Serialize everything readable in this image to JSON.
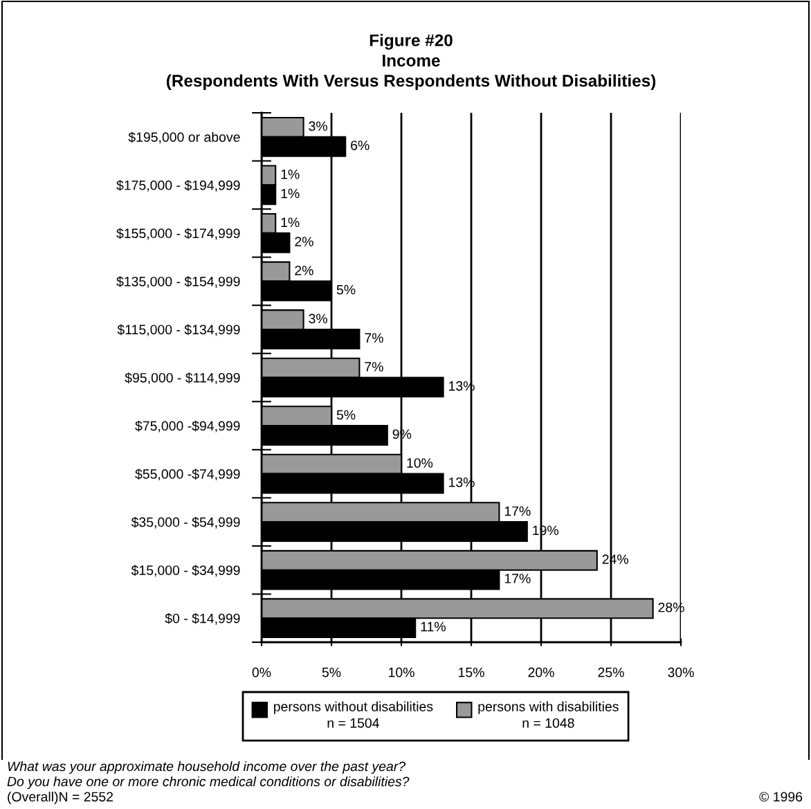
{
  "chart_data": {
    "type": "bar",
    "orientation": "horizontal",
    "title": "Figure #20\nIncome\n(Respondents With Versus Respondents Without Disabilities)",
    "categories": [
      "$195,000 or above",
      "$175,000 - $194,999",
      "$155,000 - $174,999",
      "$135,000 - $154,999",
      "$115,000 - $134,999",
      "$95,000 - $114,999",
      "$75,000 -$94,999",
      "$55,000 -$74,999",
      "$35,000 - $54,999",
      "$15,000 - $34,999",
      "$0 - $14,999"
    ],
    "series": [
      {
        "name": "persons with disabilities\nn = 1048",
        "color": "#999999",
        "values": [
          3,
          1,
          1,
          2,
          3,
          7,
          5,
          10,
          17,
          24,
          28
        ],
        "value_labels": [
          "3%",
          "1%",
          "1%",
          "2%",
          "3%",
          "7%",
          "5%",
          "10%",
          "17%",
          "24%",
          "28%"
        ]
      },
      {
        "name": "persons without disabilities\nn = 1504",
        "color": "#000000",
        "values": [
          6,
          1,
          2,
          5,
          7,
          13,
          9,
          13,
          19,
          17,
          11
        ],
        "value_labels": [
          "6%",
          "1%",
          "2%",
          "5%",
          "7%",
          "13%",
          "9%",
          "13%",
          "19%",
          "17%",
          "11%"
        ]
      }
    ],
    "xlim": [
      0,
      30
    ],
    "xticks": [
      {
        "value": 0,
        "label": "0%"
      },
      {
        "value": 5,
        "label": "5%"
      },
      {
        "value": 10,
        "label": "10%"
      },
      {
        "value": 15,
        "label": "15%"
      },
      {
        "value": 20,
        "label": "20%"
      },
      {
        "value": 25,
        "label": "25%"
      },
      {
        "value": 30,
        "label": "30%"
      }
    ],
    "grid": "x",
    "legend": "bottom",
    "annotations": [
      "What was your approximate household income over the past year?",
      "Do you have one or more chronic medical conditions or disabilities?",
      "(Overall)N = 2552",
      "© 1996"
    ]
  }
}
